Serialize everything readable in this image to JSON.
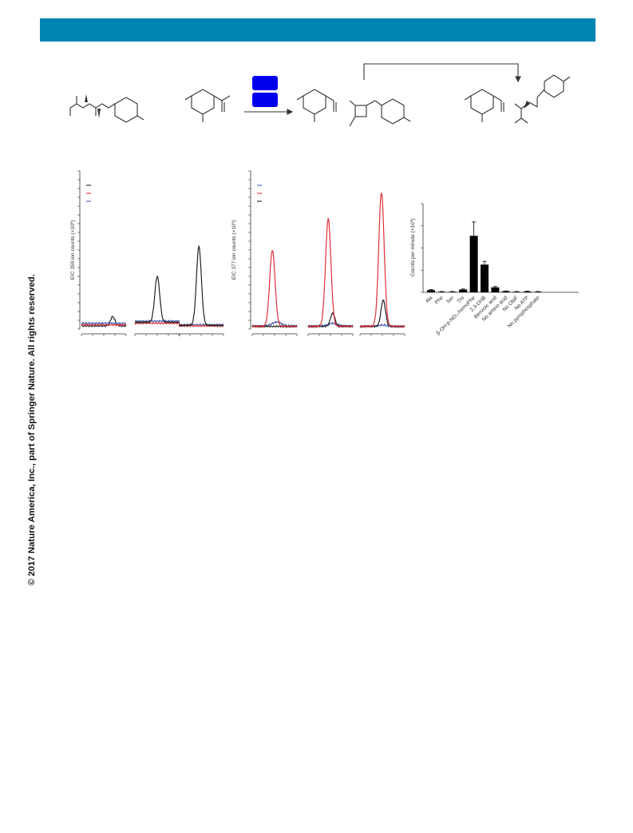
{
  "copyright": "© 2017 Nature America, Inc., part of Springer Nature. All rights reserved.",
  "colors": {
    "header": "#0085b2",
    "black_trace": "#222222",
    "red_trace": "#e0303a",
    "blue_trace": "#4a5fb0",
    "enzyme_box": "#0000ee"
  },
  "chart_data": [
    {
      "type": "line",
      "ylabel_text": "EIC 359 ion counts (×10",
      "ylabel_exp": "5",
      "ylabel_close": ")",
      "legend_colors": [
        "#222222",
        "#e0303a",
        "#4a5fb0"
      ],
      "panels": [
        {
          "series": [
            {
              "color": "#222222",
              "baseline": 0.12,
              "peak": 0.35,
              "center": 0.7,
              "width": 0.05
            },
            {
              "color": "#e0303a",
              "baseline": 0.16,
              "peak": 0,
              "center": 0.5,
              "width": 0.1
            },
            {
              "color": "#4a5fb0",
              "baseline": 0.22,
              "peak": 0,
              "center": 0.5,
              "width": 0.1
            }
          ]
        },
        {
          "series": [
            {
              "color": "#4a5fb0",
              "baseline": 0.3,
              "peak": 0,
              "center": 0.5,
              "width": 0.1
            },
            {
              "color": "#e0303a",
              "baseline": 0.22,
              "peak": 0,
              "center": 0.5,
              "width": 0.1
            },
            {
              "color": "#222222",
              "baseline": 0.26,
              "peak": 1.75,
              "center": 0.5,
              "width": 0.055
            }
          ]
        },
        {
          "series": [
            {
              "color": "#4a5fb0",
              "baseline": 0.16,
              "peak": 0,
              "center": 0.5,
              "width": 0.1
            },
            {
              "color": "#e0303a",
              "baseline": 0.12,
              "peak": 0,
              "center": 0.5,
              "width": 0.1
            },
            {
              "color": "#222222",
              "baseline": 0.14,
              "peak": 3.0,
              "center": 0.45,
              "width": 0.055
            }
          ]
        }
      ]
    },
    {
      "type": "line",
      "ylabel_text": "EIC 377 ion counts (×10",
      "ylabel_exp": "4",
      "ylabel_close": ")",
      "legend_colors": [
        "#4a5fb0",
        "#e0303a",
        "#222222"
      ],
      "panels": [
        {
          "series": [
            {
              "color": "#4a5fb0",
              "baseline": 0.12,
              "peak": 0.15,
              "center": 0.55,
              "width": 0.1
            },
            {
              "color": "#222222",
              "baseline": 0.1,
              "peak": 0,
              "center": 0.5,
              "width": 0.1
            },
            {
              "color": "#e0303a",
              "baseline": 0.1,
              "peak": 2.9,
              "center": 0.45,
              "width": 0.06
            }
          ]
        },
        {
          "series": [
            {
              "color": "#4a5fb0",
              "baseline": 0.12,
              "peak": 0.1,
              "center": 0.55,
              "width": 0.1
            },
            {
              "color": "#222222",
              "baseline": 0.1,
              "peak": 0.5,
              "center": 0.55,
              "width": 0.05
            },
            {
              "color": "#e0303a",
              "baseline": 0.1,
              "peak": 4.1,
              "center": 0.45,
              "width": 0.06
            }
          ]
        },
        {
          "series": [
            {
              "color": "#4a5fb0",
              "baseline": 0.1,
              "peak": 0.05,
              "center": 0.5,
              "width": 0.1
            },
            {
              "color": "#222222",
              "baseline": 0.1,
              "peak": 1.0,
              "center": 0.52,
              "width": 0.05
            },
            {
              "color": "#e0303a",
              "baseline": 0.1,
              "peak": 5.1,
              "center": 0.48,
              "width": 0.06
            }
          ]
        }
      ]
    },
    {
      "type": "bar",
      "ylabel_text": "Counts per minute (×10",
      "ylabel_exp": "3",
      "ylabel_close": ")",
      "categories": [
        "Ala",
        "Phe",
        "Ser",
        "Thr",
        "β-OH-p-NO₂-homoPhe",
        "2,3-DHB",
        "Benzoic acid",
        "No amino acid",
        "No ObiF",
        "No ATP",
        "No pyrophosphate"
      ],
      "values": [
        0.4,
        0.1,
        0.1,
        0.5,
        10.2,
        5.0,
        0.9,
        0.2,
        0.1,
        0.15,
        0.1
      ],
      "errors": [
        0.1,
        0.05,
        0.05,
        0.1,
        2.5,
        0.6,
        0.15,
        0.05,
        0.05,
        0.05,
        0.05
      ],
      "ylim": [
        0,
        16
      ]
    }
  ]
}
